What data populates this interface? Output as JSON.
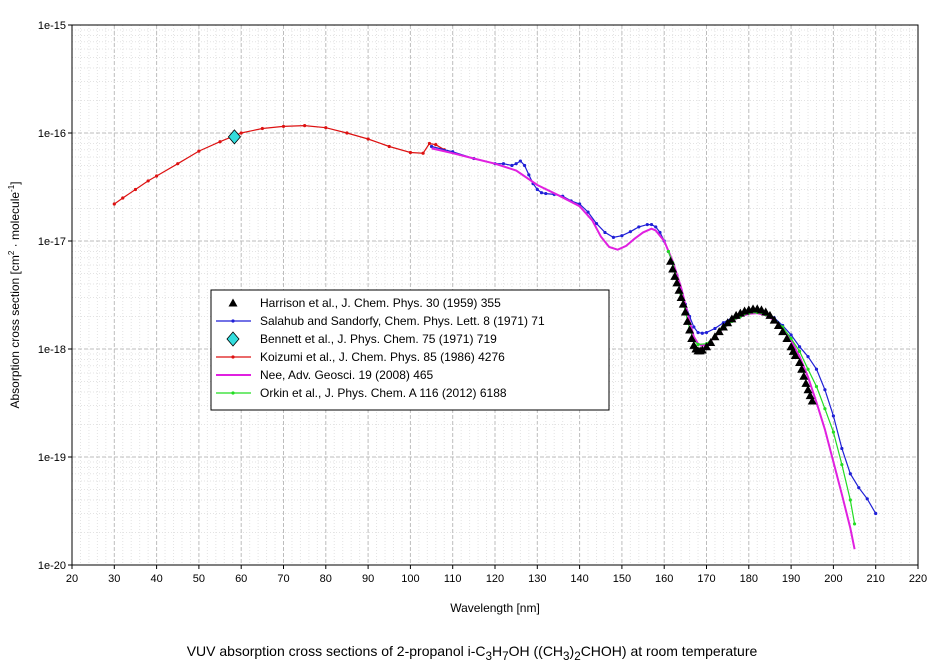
{
  "chart_data": {
    "type": "line",
    "xlabel": "Wavelength [nm]",
    "ylabel": "Absorption cross section [cm² · molecule⁻¹]",
    "xlim": [
      20,
      220
    ],
    "ylim": [
      1e-20,
      1e-15
    ],
    "yscale": "log",
    "grid": true,
    "legend_position": "center-left",
    "x_ticks": [
      "20",
      "30",
      "40",
      "50",
      "60",
      "70",
      "80",
      "90",
      "100",
      "110",
      "120",
      "130",
      "140",
      "150",
      "160",
      "170",
      "180",
      "190",
      "200",
      "210",
      "220"
    ],
    "y_ticks": [
      "1e-15",
      "1e-16",
      "1e-17",
      "1e-18",
      "1e-19",
      "1e-20"
    ],
    "series": [
      {
        "name": "Harrison et al., J. Chem. Phys. 30 (1959) 355",
        "color": "#000000",
        "marker": "triangle",
        "points": [
          [
            161.5,
            6.5e-18
          ],
          [
            162,
            5.5e-18
          ],
          [
            162.5,
            4.7e-18
          ],
          [
            163,
            4.1e-18
          ],
          [
            163.5,
            3.5e-18
          ],
          [
            164,
            3e-18
          ],
          [
            164.5,
            2.6e-18
          ],
          [
            165,
            2.2e-18
          ],
          [
            165.5,
            1.8e-18
          ],
          [
            166,
            1.5e-18
          ],
          [
            166.5,
            1.25e-18
          ],
          [
            167,
            1.08e-18
          ],
          [
            167.5,
            1e-18
          ],
          [
            168,
            9.6e-19
          ],
          [
            168.5,
            9.6e-19
          ],
          [
            169,
            9.8e-19
          ],
          [
            170,
            1.05e-18
          ],
          [
            171,
            1.15e-18
          ],
          [
            172,
            1.3e-18
          ],
          [
            173,
            1.45e-18
          ],
          [
            174,
            1.6e-18
          ],
          [
            175,
            1.75e-18
          ],
          [
            176,
            1.9e-18
          ],
          [
            177,
            2.05e-18
          ],
          [
            178,
            2.15e-18
          ],
          [
            179,
            2.25e-18
          ],
          [
            180,
            2.3e-18
          ],
          [
            181,
            2.35e-18
          ],
          [
            182,
            2.35e-18
          ],
          [
            183,
            2.3e-18
          ],
          [
            184,
            2.2e-18
          ],
          [
            185,
            2.05e-18
          ],
          [
            186,
            1.85e-18
          ],
          [
            187,
            1.65e-18
          ],
          [
            188,
            1.45e-18
          ],
          [
            189,
            1.25e-18
          ],
          [
            190,
            1.05e-18
          ],
          [
            190.5,
            9.5e-19
          ],
          [
            191,
            8.7e-19
          ],
          [
            192,
            7.5e-19
          ],
          [
            192.5,
            6.5e-19
          ],
          [
            193,
            5.6e-19
          ],
          [
            193.5,
            4.8e-19
          ],
          [
            194,
            4.2e-19
          ],
          [
            194.5,
            3.7e-19
          ],
          [
            195,
            3.3e-19
          ]
        ]
      },
      {
        "name": "Salahub and Sandorfy, Chem. Phys. Lett. 8 (1971) 71",
        "color": "#1f1fd6",
        "marker": "dot",
        "points": [
          [
            105,
            7.5e-17
          ],
          [
            110,
            6.7e-17
          ],
          [
            115,
            5.8e-17
          ],
          [
            120,
            5.2e-17
          ],
          [
            122,
            5.2e-17
          ],
          [
            124,
            5e-17
          ],
          [
            125,
            5.2e-17
          ],
          [
            126,
            5.5e-17
          ],
          [
            127,
            5e-17
          ],
          [
            128,
            4.1e-17
          ],
          [
            129,
            3.4e-17
          ],
          [
            130,
            3e-17
          ],
          [
            131,
            2.8e-17
          ],
          [
            132,
            2.75e-17
          ],
          [
            134,
            2.7e-17
          ],
          [
            136,
            2.6e-17
          ],
          [
            138,
            2.35e-17
          ],
          [
            140,
            2.2e-17
          ],
          [
            142,
            1.85e-17
          ],
          [
            144,
            1.45e-17
          ],
          [
            146,
            1.2e-17
          ],
          [
            148,
            1.08e-17
          ],
          [
            150,
            1.12e-17
          ],
          [
            152,
            1.22e-17
          ],
          [
            154,
            1.35e-17
          ],
          [
            156,
            1.42e-17
          ],
          [
            157,
            1.42e-17
          ],
          [
            158,
            1.35e-17
          ],
          [
            159,
            1.2e-17
          ],
          [
            160,
            1e-17
          ],
          [
            161,
            8e-18
          ],
          [
            162,
            6.2e-18
          ],
          [
            163,
            4.8e-18
          ],
          [
            164,
            3.5e-18
          ],
          [
            165,
            2.6e-18
          ],
          [
            166,
            2e-18
          ],
          [
            167,
            1.6e-18
          ],
          [
            168,
            1.42e-18
          ],
          [
            169,
            1.4e-18
          ],
          [
            170,
            1.42e-18
          ],
          [
            172,
            1.55e-18
          ],
          [
            174,
            1.75e-18
          ],
          [
            176,
            1.95e-18
          ],
          [
            178,
            2.1e-18
          ],
          [
            180,
            2.2e-18
          ],
          [
            182,
            2.25e-18
          ],
          [
            184,
            2.15e-18
          ],
          [
            186,
            1.95e-18
          ],
          [
            188,
            1.65e-18
          ],
          [
            190,
            1.35e-18
          ],
          [
            192,
            1.05e-18
          ],
          [
            194,
            8.5e-19
          ],
          [
            196,
            6.5e-19
          ],
          [
            198,
            4.2e-19
          ],
          [
            200,
            2.4e-19
          ],
          [
            202,
            1.2e-19
          ],
          [
            204,
            7e-20
          ],
          [
            206,
            5.2e-20
          ],
          [
            208,
            4.1e-20
          ],
          [
            210,
            3e-20
          ]
        ]
      },
      {
        "name": "Bennett et al.,  J. Phys. Chem. 75 (1971) 719",
        "color": "#33dddd",
        "marker": "diamond",
        "points": [
          [
            58.4,
            9.2e-17
          ]
        ]
      },
      {
        "name": "Koizumi et al., J. Chem. Phys. 85 (1986) 4276",
        "color": "#dd1111",
        "marker": "dot",
        "points": [
          [
            30,
            2.2e-17
          ],
          [
            32,
            2.5e-17
          ],
          [
            35,
            3e-17
          ],
          [
            38,
            3.6e-17
          ],
          [
            40,
            4e-17
          ],
          [
            45,
            5.2e-17
          ],
          [
            50,
            6.8e-17
          ],
          [
            55,
            8.3e-17
          ],
          [
            60,
            1e-16
          ],
          [
            65,
            1.1e-16
          ],
          [
            70,
            1.15e-16
          ],
          [
            75,
            1.17e-16
          ],
          [
            80,
            1.12e-16
          ],
          [
            85,
            1e-16
          ],
          [
            90,
            8.8e-17
          ],
          [
            95,
            7.5e-17
          ],
          [
            100,
            6.6e-17
          ],
          [
            103,
            6.5e-17
          ],
          [
            104.5,
            8e-17
          ],
          [
            106,
            7.8e-17
          ],
          [
            108,
            7e-17
          ]
        ]
      },
      {
        "name": "Nee, Adv. Geosci. 19 (2008) 465",
        "color": "#e020e0",
        "marker": "none",
        "points": [
          [
            105,
            7.2e-17
          ],
          [
            110,
            6.5e-17
          ],
          [
            115,
            5.8e-17
          ],
          [
            120,
            5.2e-17
          ],
          [
            125,
            4.5e-17
          ],
          [
            130,
            3.3e-17
          ],
          [
            135,
            2.65e-17
          ],
          [
            140,
            2.1e-17
          ],
          [
            143,
            1.55e-17
          ],
          [
            145,
            1.1e-17
          ],
          [
            147,
            8.8e-18
          ],
          [
            149,
            8.3e-18
          ],
          [
            151,
            9e-18
          ],
          [
            153,
            1.05e-17
          ],
          [
            155,
            1.2e-17
          ],
          [
            157,
            1.3e-17
          ],
          [
            158,
            1.25e-17
          ],
          [
            160,
            1e-17
          ],
          [
            162,
            6.5e-18
          ],
          [
            164,
            3.7e-18
          ],
          [
            166,
            1.8e-18
          ],
          [
            167,
            1.3e-18
          ],
          [
            168,
            1.12e-18
          ],
          [
            169,
            1.07e-18
          ],
          [
            170,
            1.1e-18
          ],
          [
            172,
            1.3e-18
          ],
          [
            174,
            1.55e-18
          ],
          [
            176,
            1.8e-18
          ],
          [
            178,
            2e-18
          ],
          [
            180,
            2.12e-18
          ],
          [
            182,
            2.15e-18
          ],
          [
            184,
            2.05e-18
          ],
          [
            186,
            1.85e-18
          ],
          [
            188,
            1.55e-18
          ],
          [
            190,
            1.2e-18
          ],
          [
            192,
            8.5e-19
          ],
          [
            194,
            5.5e-19
          ],
          [
            196,
            3.2e-19
          ],
          [
            198,
            1.8e-19
          ],
          [
            200,
            9e-20
          ],
          [
            202,
            4.5e-20
          ],
          [
            204,
            2.2e-20
          ],
          [
            205,
            1.4e-20
          ]
        ]
      },
      {
        "name": "Orkin et al., J. Phys. Chem. A 116 (2012) 6188",
        "color": "#22dd22",
        "marker": "dot",
        "points": [
          [
            161,
            8e-18
          ],
          [
            162,
            6.3e-18
          ],
          [
            163,
            4.5e-18
          ],
          [
            164,
            3.2e-18
          ],
          [
            165,
            2.2e-18
          ],
          [
            166,
            1.55e-18
          ],
          [
            167,
            1.2e-18
          ],
          [
            168,
            1.1e-18
          ],
          [
            170,
            1.12e-18
          ],
          [
            172,
            1.3e-18
          ],
          [
            174,
            1.55e-18
          ],
          [
            176,
            1.8e-18
          ],
          [
            178,
            2e-18
          ],
          [
            180,
            2.15e-18
          ],
          [
            182,
            2.18e-18
          ],
          [
            184,
            2.08e-18
          ],
          [
            186,
            1.9e-18
          ],
          [
            188,
            1.6e-18
          ],
          [
            190,
            1.25e-18
          ],
          [
            192,
            9.5e-19
          ],
          [
            194,
            6.5e-19
          ],
          [
            196,
            4.5e-19
          ],
          [
            198,
            2.8e-19
          ],
          [
            200,
            1.7e-19
          ],
          [
            202,
            8.5e-20
          ],
          [
            204,
            4e-20
          ],
          [
            205,
            2.4e-20
          ]
        ]
      }
    ]
  },
  "caption_parts": {
    "p1": "VUV absorption cross sections of 2-propanol i-C",
    "s1": "3",
    "p2": "H",
    "s2": "7",
    "p3": "OH ((CH",
    "s3": "3",
    "p4": ")",
    "s4": "2",
    "p5": "CHOH) at room temperature"
  },
  "ylabel_parts": {
    "a": "Absorption cross section [cm",
    "sup1": "2",
    "b": " · molecule",
    "sup2": "-1",
    "c": "]"
  }
}
